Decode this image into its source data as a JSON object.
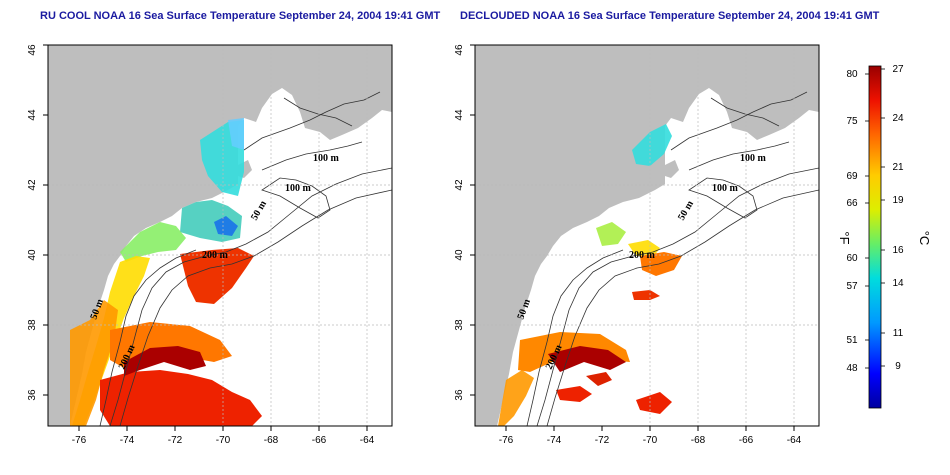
{
  "titles": {
    "left": "RU COOL NOAA 16 Sea Surface Temperature September 24, 2004 19:41 GMT",
    "right": "DECLOUDED NOAA 16 Sea Surface Temperature September 24, 2004 19:41 GMT"
  },
  "axes": {
    "x_ticks": [
      "-76",
      "-74",
      "-72",
      "-70",
      "-68",
      "-66",
      "-64"
    ],
    "y_ticks": [
      "36",
      "38",
      "40",
      "42",
      "44",
      "46"
    ]
  },
  "contour_labels": [
    "100 m",
    "100 m",
    "50 m",
    "200 m",
    "50 m",
    "200 m"
  ],
  "colorbar": {
    "fahrenheit_ticks": [
      "80",
      "75",
      "69",
      "66",
      "60",
      "57",
      "51",
      "48"
    ],
    "celsius_ticks": [
      "27",
      "24",
      "21",
      "19",
      "16",
      "14",
      "11",
      "9"
    ],
    "fahrenheit_unit": "°F",
    "celsius_unit": "°C"
  },
  "colors": {
    "land": "#bebebe",
    "title": "#1a1aa0",
    "grid": "#bbbbbb"
  }
}
